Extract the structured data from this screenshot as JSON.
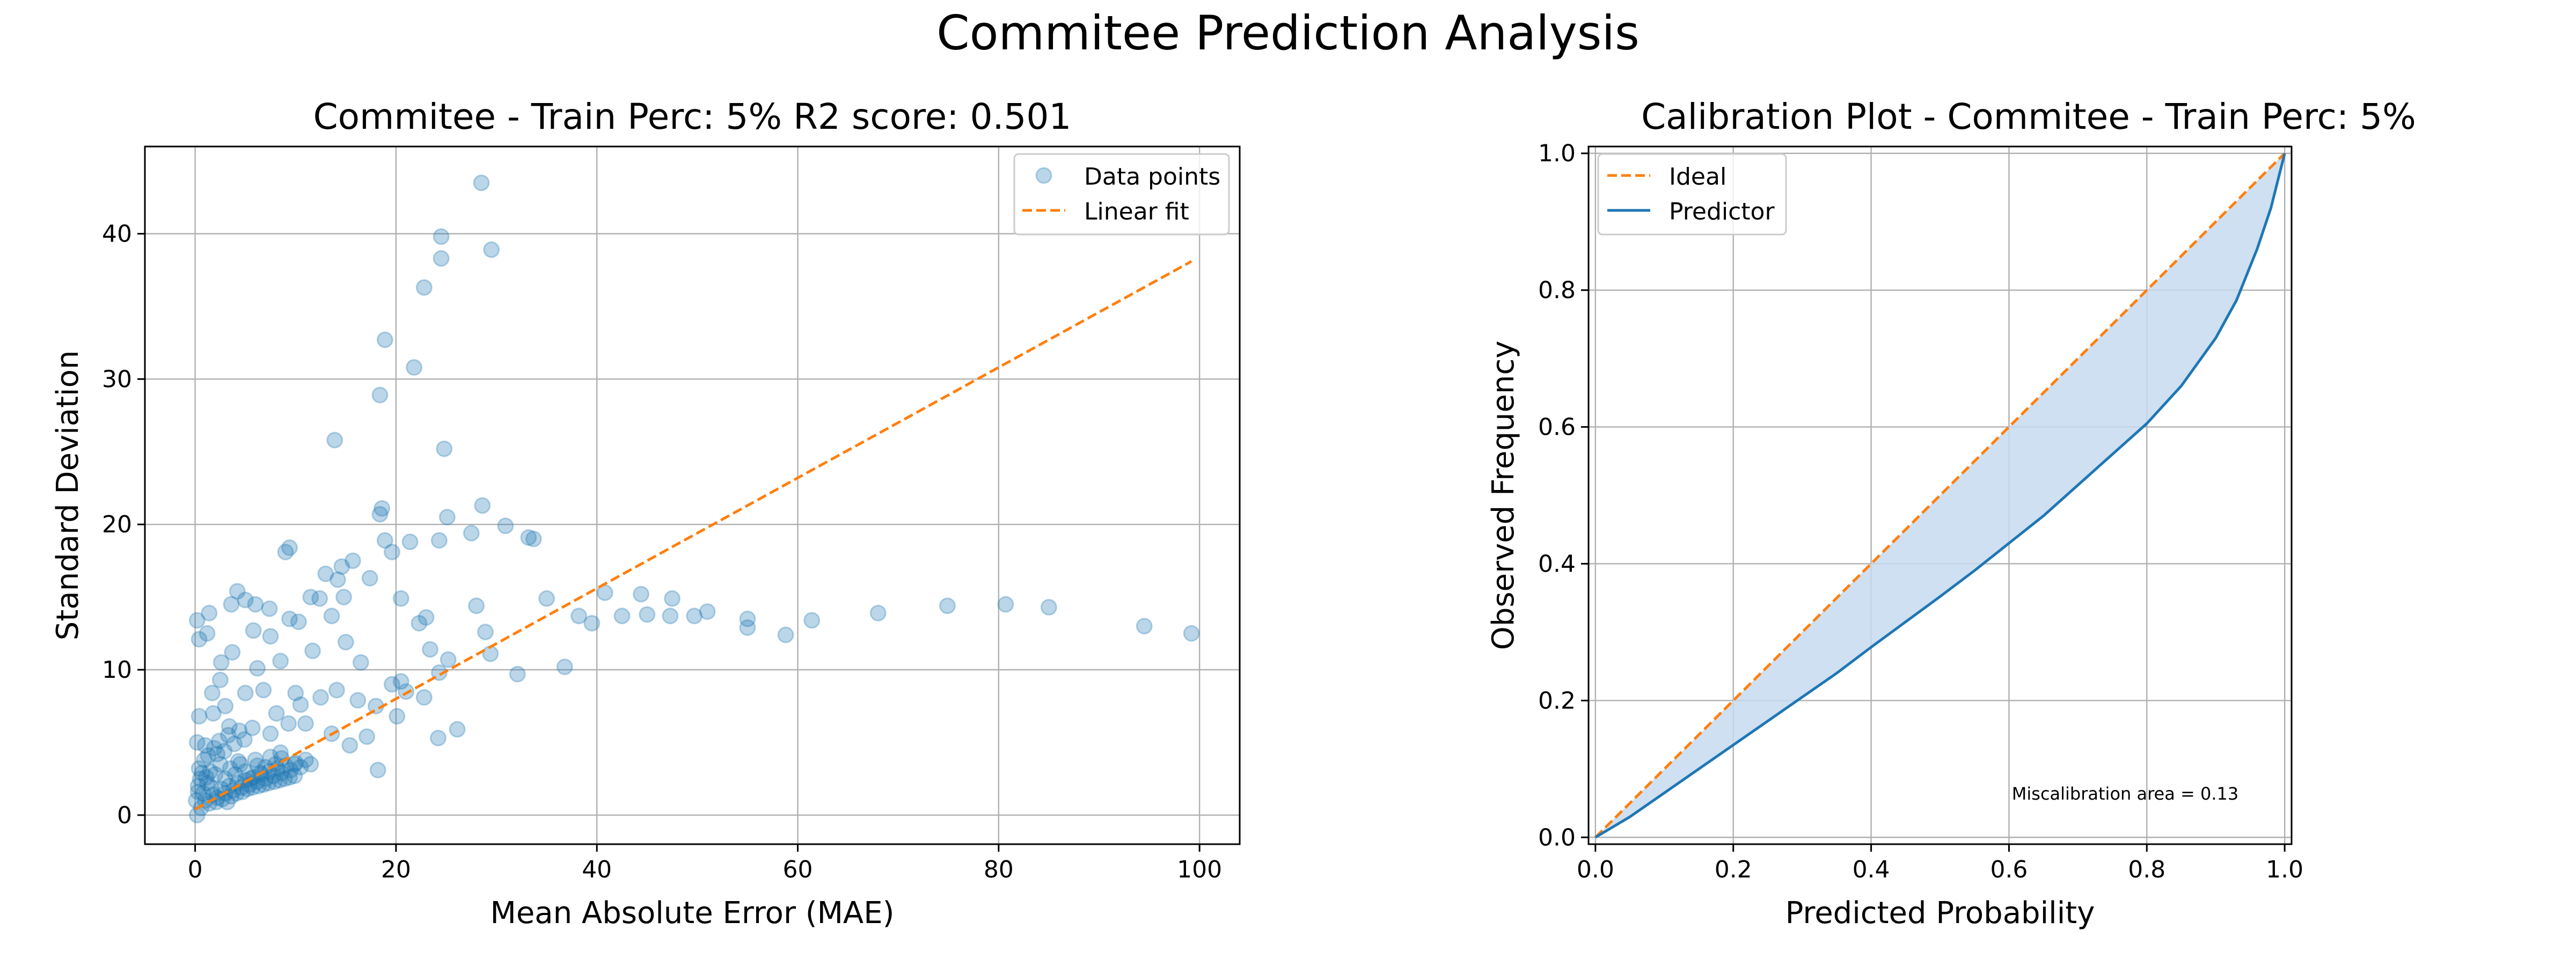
{
  "suptitle": "Commitee Prediction Analysis",
  "colors": {
    "scatter": "#1f77b4",
    "fit": "#ff7f0e",
    "predictor": "#1f77b4",
    "fill": "#c6dbef",
    "grid": "#b0b0b0"
  },
  "chart_data": [
    {
      "type": "scatter",
      "title": "Commitee - Train Perc: 5% R2 score: 0.501",
      "xlabel": "Mean Absolute Error (MAE)",
      "ylabel": "Standard Deviation",
      "xlim": [
        -5,
        104
      ],
      "ylim": [
        -2,
        46
      ],
      "xticks": [
        0,
        20,
        40,
        60,
        80,
        100
      ],
      "yticks": [
        0,
        10,
        20,
        30,
        40
      ],
      "grid": true,
      "legend": {
        "position": "top-right",
        "entries": [
          "Data points",
          "Linear fit"
        ]
      },
      "series": [
        {
          "name": "Data points",
          "kind": "scatter",
          "alpha": 0.3,
          "points": [
            [
              28.5,
              43.5
            ],
            [
              24.5,
              39.8
            ],
            [
              24.5,
              38.3
            ],
            [
              29.5,
              38.9
            ],
            [
              22.8,
              36.3
            ],
            [
              18.9,
              32.7
            ],
            [
              21.8,
              30.8
            ],
            [
              18.4,
              28.9
            ],
            [
              13.9,
              25.8
            ],
            [
              24.8,
              25.2
            ],
            [
              28.6,
              21.3
            ],
            [
              18.6,
              21.1
            ],
            [
              18.4,
              20.7
            ],
            [
              25.1,
              20.5
            ],
            [
              30.9,
              19.9
            ],
            [
              27.5,
              19.4
            ],
            [
              33.2,
              19.1
            ],
            [
              33.7,
              19.0
            ],
            [
              24.3,
              18.9
            ],
            [
              21.4,
              18.8
            ],
            [
              18.9,
              18.9
            ],
            [
              9.4,
              18.4
            ],
            [
              9.0,
              18.1
            ],
            [
              19.6,
              18.1
            ],
            [
              15.7,
              17.5
            ],
            [
              14.6,
              17.1
            ],
            [
              13.0,
              16.6
            ],
            [
              17.4,
              16.3
            ],
            [
              14.2,
              16.2
            ],
            [
              4.2,
              15.4
            ],
            [
              11.5,
              15.0
            ],
            [
              12.4,
              14.9
            ],
            [
              14.8,
              15.0
            ],
            [
              35.0,
              14.9
            ],
            [
              40.8,
              15.3
            ],
            [
              44.4,
              15.2
            ],
            [
              47.5,
              14.9
            ],
            [
              20.5,
              14.9
            ],
            [
              0.2,
              13.4
            ],
            [
              0.4,
              12.1
            ],
            [
              1.2,
              12.5
            ],
            [
              1.4,
              13.9
            ],
            [
              3.6,
              14.5
            ],
            [
              5.0,
              14.8
            ],
            [
              6.0,
              14.5
            ],
            [
              7.4,
              14.2
            ],
            [
              9.4,
              13.5
            ],
            [
              10.3,
              13.3
            ],
            [
              13.6,
              13.7
            ],
            [
              22.3,
              13.2
            ],
            [
              23.0,
              13.6
            ],
            [
              28.0,
              14.4
            ],
            [
              38.2,
              13.7
            ],
            [
              39.5,
              13.2
            ],
            [
              42.5,
              13.7
            ],
            [
              45.0,
              13.8
            ],
            [
              47.3,
              13.7
            ],
            [
              49.7,
              13.7
            ],
            [
              51.0,
              14.0
            ],
            [
              55.0,
              13.5
            ],
            [
              55.0,
              12.9
            ],
            [
              58.8,
              12.4
            ],
            [
              61.4,
              13.4
            ],
            [
              68.0,
              13.9
            ],
            [
              74.9,
              14.4
            ],
            [
              80.7,
              14.5
            ],
            [
              85.0,
              14.3
            ],
            [
              94.5,
              13.0
            ],
            [
              99.2,
              12.5
            ],
            [
              28.9,
              12.6
            ],
            [
              36.8,
              10.2
            ],
            [
              32.1,
              9.7
            ],
            [
              29.4,
              11.1
            ],
            [
              25.2,
              10.7
            ],
            [
              24.3,
              9.8
            ],
            [
              20.5,
              9.2
            ],
            [
              21.0,
              8.5
            ],
            [
              22.8,
              8.1
            ],
            [
              20.1,
              6.8
            ],
            [
              18.0,
              7.5
            ],
            [
              16.2,
              7.9
            ],
            [
              14.1,
              8.6
            ],
            [
              12.5,
              8.1
            ],
            [
              10.5,
              7.6
            ],
            [
              10.0,
              8.4
            ],
            [
              11.0,
              6.3
            ],
            [
              13.6,
              5.6
            ],
            [
              15.4,
              4.8
            ],
            [
              17.1,
              5.4
            ],
            [
              18.2,
              3.1
            ],
            [
              24.2,
              5.3
            ],
            [
              26.1,
              5.9
            ],
            [
              2.5,
              9.3
            ],
            [
              5.0,
              8.4
            ],
            [
              6.8,
              8.6
            ],
            [
              8.1,
              7.0
            ],
            [
              9.3,
              6.3
            ],
            [
              1.8,
              7.0
            ],
            [
              0.4,
              6.8
            ],
            [
              3.4,
              6.1
            ],
            [
              5.7,
              6.0
            ],
            [
              7.5,
              5.6
            ],
            [
              9.9,
              3.5
            ],
            [
              8.6,
              3.9
            ],
            [
              6.2,
              3.4
            ],
            [
              4.3,
              3.7
            ],
            [
              2.2,
              4.2
            ],
            [
              1.0,
              4.8
            ],
            [
              0.2,
              5.0
            ],
            [
              3.7,
              11.2
            ],
            [
              2.6,
              10.5
            ],
            [
              6.2,
              10.1
            ],
            [
              8.5,
              10.6
            ],
            [
              15.0,
              11.9
            ],
            [
              11.7,
              11.3
            ],
            [
              7.5,
              12.3
            ],
            [
              5.8,
              12.7
            ],
            [
              16.5,
              10.5
            ],
            [
              19.6,
              9.0
            ],
            [
              23.4,
              11.4
            ],
            [
              1.7,
              8.4
            ],
            [
              3.0,
              7.5
            ],
            [
              0.1,
              1.0
            ],
            [
              0.3,
              2.0
            ],
            [
              0.5,
              2.5
            ],
            [
              0.8,
              1.5
            ],
            [
              1.2,
              2.2
            ],
            [
              1.5,
              3.0
            ],
            [
              2.0,
              2.8
            ],
            [
              2.5,
              3.5
            ],
            [
              3.0,
              2.5
            ],
            [
              3.5,
              3.2
            ],
            [
              4.0,
              2.8
            ],
            [
              4.5,
              3.5
            ],
            [
              5.0,
              3.0
            ],
            [
              5.5,
              2.5
            ],
            [
              6.0,
              3.8
            ],
            [
              6.5,
              2.9
            ],
            [
              7.0,
              3.3
            ],
            [
              7.5,
              4.0
            ],
            [
              8.0,
              3.5
            ],
            [
              8.5,
              4.3
            ],
            [
              0.2,
              0.0
            ],
            [
              0.6,
              0.5
            ],
            [
              1.0,
              1.0
            ],
            [
              1.4,
              0.8
            ],
            [
              1.8,
              1.4
            ],
            [
              2.2,
              1.2
            ],
            [
              2.6,
              1.8
            ],
            [
              3.0,
              1.5
            ],
            [
              3.4,
              2.0
            ],
            [
              3.8,
              1.7
            ],
            [
              4.2,
              2.2
            ],
            [
              4.6,
              1.9
            ],
            [
              5.0,
              2.4
            ],
            [
              5.4,
              2.1
            ],
            [
              5.8,
              2.6
            ],
            [
              6.2,
              2.3
            ],
            [
              6.6,
              2.8
            ],
            [
              7.0,
              2.5
            ],
            [
              7.4,
              3.0
            ],
            [
              7.8,
              2.7
            ],
            [
              8.2,
              3.2
            ],
            [
              8.6,
              2.9
            ],
            [
              9.0,
              3.4
            ],
            [
              9.5,
              3.1
            ],
            [
              10.0,
              3.6
            ],
            [
              10.5,
              3.3
            ],
            [
              11.0,
              3.8
            ],
            [
              11.5,
              3.5
            ],
            [
              0.4,
              3.2
            ],
            [
              0.9,
              3.8
            ],
            [
              1.3,
              4.1
            ],
            [
              1.9,
              4.6
            ],
            [
              2.4,
              5.1
            ],
            [
              2.9,
              4.4
            ],
            [
              3.3,
              5.5
            ],
            [
              3.9,
              4.9
            ],
            [
              4.4,
              5.8
            ],
            [
              4.9,
              5.2
            ],
            [
              0.3,
              1.6
            ],
            [
              0.7,
              2.9
            ],
            [
              1.1,
              2.6
            ],
            [
              1.6,
              1.9
            ],
            [
              2.1,
              0.9
            ],
            [
              2.7,
              1.1
            ],
            [
              3.2,
              0.9
            ],
            [
              3.6,
              1.3
            ],
            [
              4.1,
              1.5
            ],
            [
              4.7,
              1.6
            ],
            [
              5.2,
              1.8
            ],
            [
              5.7,
              1.9
            ],
            [
              6.3,
              2.0
            ],
            [
              6.8,
              2.1
            ],
            [
              7.3,
              2.2
            ],
            [
              7.9,
              2.3
            ],
            [
              8.4,
              2.4
            ],
            [
              8.9,
              2.5
            ],
            [
              9.4,
              2.6
            ],
            [
              9.9,
              2.7
            ]
          ]
        },
        {
          "name": "Linear fit",
          "kind": "line",
          "dash": true,
          "x": [
            0,
            99.2
          ],
          "y": [
            0.4,
            38.1
          ]
        }
      ]
    },
    {
      "type": "line",
      "title": "Calibration Plot - Commitee - Train Perc: 5%",
      "xlabel": "Predicted Probability",
      "ylabel": "Observed Frequency",
      "xlim": [
        -0.01,
        1.01
      ],
      "ylim": [
        -0.01,
        1.01
      ],
      "xticks": [
        0.0,
        0.2,
        0.4,
        0.6,
        0.8,
        1.0
      ],
      "yticks": [
        0.0,
        0.2,
        0.4,
        0.6,
        0.8,
        1.0
      ],
      "grid": true,
      "legend": {
        "position": "top-left",
        "entries": [
          "Ideal",
          "Predictor"
        ]
      },
      "annotation": "Miscalibration area = 0.13",
      "series": [
        {
          "name": "Ideal",
          "kind": "line",
          "dash": true,
          "x": [
            0.0,
            1.0
          ],
          "y": [
            0.0,
            1.0
          ]
        },
        {
          "name": "Predictor",
          "kind": "line",
          "x": [
            0.0,
            0.05,
            0.1,
            0.15,
            0.2,
            0.25,
            0.3,
            0.35,
            0.4,
            0.45,
            0.5,
            0.55,
            0.6,
            0.65,
            0.7,
            0.75,
            0.8,
            0.85,
            0.9,
            0.93,
            0.96,
            0.98,
            0.99,
            1.0
          ],
          "y": [
            0.0,
            0.03,
            0.065,
            0.1,
            0.135,
            0.17,
            0.205,
            0.24,
            0.278,
            0.315,
            0.352,
            0.39,
            0.43,
            0.47,
            0.515,
            0.56,
            0.605,
            0.66,
            0.73,
            0.785,
            0.86,
            0.92,
            0.96,
            1.0
          ]
        }
      ]
    }
  ]
}
